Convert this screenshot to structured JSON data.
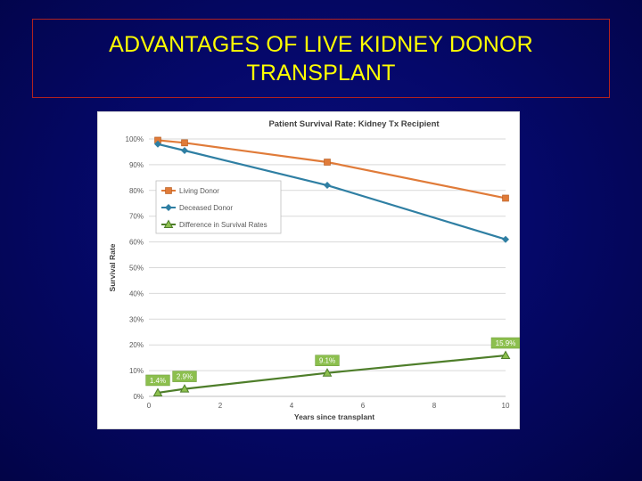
{
  "slide": {
    "title_lines": [
      "ADVANTAGES OF LIVE KIDNEY DONOR",
      "TRANSPLANT"
    ]
  },
  "chart_data": {
    "type": "line",
    "title": "Patient Survival Rate: Kidney Tx Recipient",
    "xlabel": "Years since transplant",
    "ylabel": "Survival Rate",
    "xlim": [
      0,
      10
    ],
    "ylim": [
      0,
      100
    ],
    "xticks": [
      "0",
      "2",
      "4",
      "6",
      "8",
      "10"
    ],
    "yticks": [
      "0%",
      "10%",
      "20%",
      "30%",
      "40%",
      "50%",
      "60%",
      "70%",
      "80%",
      "90%",
      "100%"
    ],
    "grid": "horizontal",
    "legend_position": "upper-left",
    "series": [
      {
        "name": "Living Donor",
        "color": "#e07b39",
        "marker": "square",
        "points": [
          [
            0.25,
            99.5
          ],
          [
            1,
            98.5
          ],
          [
            5,
            91
          ],
          [
            10,
            77
          ]
        ]
      },
      {
        "name": "Deceased Donor",
        "color": "#2f7fa3",
        "marker": "diamond",
        "points": [
          [
            0.25,
            98
          ],
          [
            1,
            95.5
          ],
          [
            5,
            82
          ],
          [
            10,
            61
          ]
        ]
      },
      {
        "name": "Difference in Survival Rates",
        "color": "#4e7e2a",
        "marker": "triangle",
        "points": [
          [
            0.25,
            1.4
          ],
          [
            1,
            2.9
          ],
          [
            5,
            9.1
          ],
          [
            10,
            15.9
          ]
        ],
        "data_labels": [
          "1.4%",
          "2.9%",
          "9.1%",
          "15.9%"
        ]
      }
    ]
  }
}
